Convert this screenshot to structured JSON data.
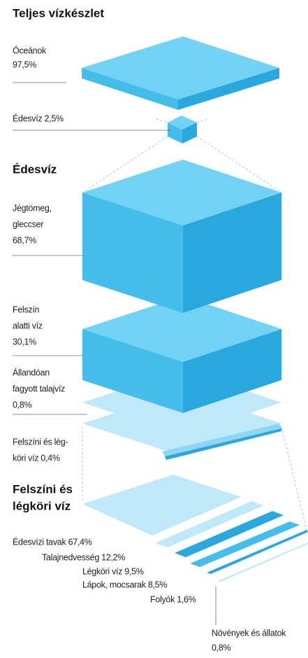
{
  "sections": [
    {
      "title": [
        "Teljes vízkészlet"
      ],
      "labels": [
        [
          "Óceánok",
          "97,5%"
        ],
        [
          "Édesvíz 2,5%"
        ]
      ]
    },
    {
      "title": [
        "Édesvíz"
      ],
      "labels": [
        [
          "Jégtömeg,",
          "gleccser",
          "68,7%"
        ],
        [
          "Felszín",
          "alatti víz",
          "30,1%"
        ],
        [
          "Állandóan",
          "fagyott talajvíz",
          "0,8%"
        ],
        [
          "Felszíni és lég-",
          "köri víz 0,4%"
        ]
      ]
    },
    {
      "title": [
        "Felszíni és",
        "légköri víz"
      ],
      "labels": [
        [
          "Édesvízi tavak 67,4%"
        ],
        [
          "Talajnedvesség 12,2%"
        ],
        [
          "Légköri víz 9,5%"
        ],
        [
          "Lápok, mocsarak 8,5%"
        ],
        [
          "Folyók 1,6%"
        ],
        [
          "Növények és állatok",
          "0,8%"
        ]
      ]
    }
  ]
}
